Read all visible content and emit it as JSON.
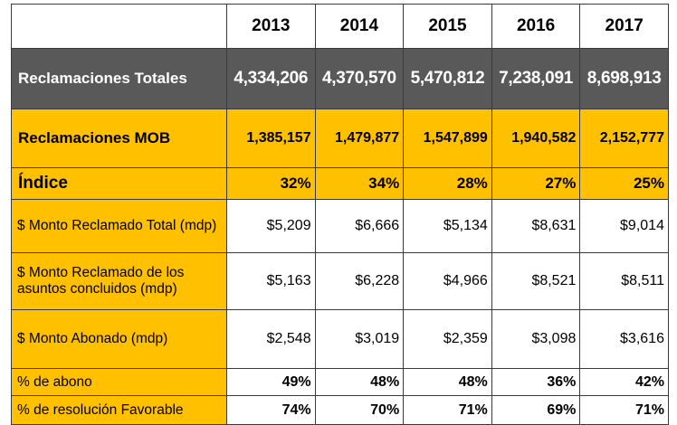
{
  "years": [
    "2013",
    "2014",
    "2015",
    "2016",
    "2017"
  ],
  "rows": [
    {
      "label": "Reclamaciones Totales",
      "values": [
        "4,334,206",
        "4,370,570",
        "5,470,812",
        "7,238,091",
        "8,698,913"
      ]
    },
    {
      "label": "Reclamaciones MOB",
      "values": [
        "1,385,157",
        "1,479,877",
        "1,547,899",
        "1,940,582",
        "2,152,777"
      ]
    },
    {
      "label": "Índice",
      "values": [
        "32%",
        "34%",
        "28%",
        "27%",
        "25%"
      ]
    },
    {
      "label": "$ Monto Reclamado Total (mdp)",
      "values": [
        "$5,209",
        "$6,666",
        "$5,134",
        "$8,631",
        "$9,014"
      ]
    },
    {
      "label": "$ Monto Reclamado de los asuntos concluidos (mdp)",
      "values": [
        "$5,163",
        "$6,228",
        "$4,966",
        "$8,521",
        "$8,511"
      ]
    },
    {
      "label": "$ Monto Abonado (mdp)",
      "values": [
        "$2,548",
        "$3,019",
        "$2,359",
        "$3,098",
        "$3,616"
      ]
    },
    {
      "label": "% de abono",
      "values": [
        "49%",
        "48%",
        "48%",
        "36%",
        "42%"
      ]
    },
    {
      "label": "% de resolución Favorable",
      "values": [
        "74%",
        "70%",
        "71%",
        "69%",
        "71%"
      ]
    }
  ],
  "colors": {
    "header_dark": "#595959",
    "accent_yellow": "#ffc000",
    "border": "#3a3a3a"
  }
}
